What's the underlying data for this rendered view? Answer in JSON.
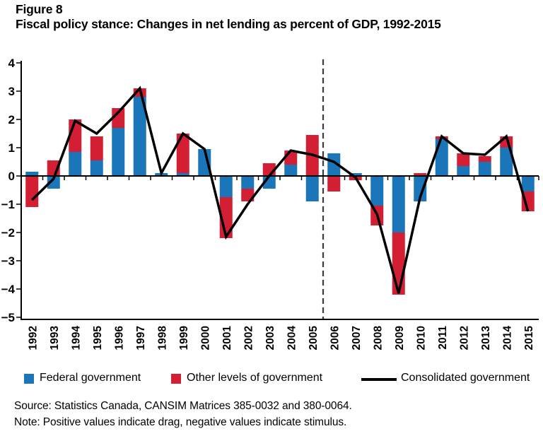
{
  "title": {
    "line1": "Figure 8",
    "line2": "Fiscal policy stance: Changes in net lending as percent of GDP, 1992-2015"
  },
  "colors": {
    "federal": "#1B75B9",
    "other": "#D21F34",
    "consolidated": "#000000",
    "divider": "#3B3B3B",
    "axis": "#000000"
  },
  "legend": {
    "federal_label": "Federal government",
    "other_label": "Other levels of government",
    "consolidated_label": "Consolidated government"
  },
  "footer": {
    "source": "Source: Statistics Canada, CANSIM Matrices 385-0032 and 380-0064.",
    "note": "Note: Positive values indicate drag, negative values indicate stimulus."
  },
  "chart_data": {
    "type": "bar",
    "subtype": "stacked-bars-with-line-overlay",
    "categories": [
      1992,
      1993,
      1994,
      1995,
      1996,
      1997,
      1998,
      1999,
      2000,
      2001,
      2002,
      2003,
      2004,
      2005,
      2006,
      2007,
      2008,
      2009,
      2010,
      2011,
      2012,
      2013,
      2014,
      2015
    ],
    "series": [
      {
        "name": "Federal government",
        "type": "bar",
        "color_key": "federal",
        "values": [
          0.15,
          -0.45,
          0.85,
          0.55,
          1.7,
          2.8,
          0.1,
          0.1,
          0.95,
          -0.75,
          -0.45,
          -0.45,
          0.4,
          -0.9,
          0.8,
          0.1,
          -1.05,
          -2.0,
          -0.9,
          1.3,
          0.35,
          0.5,
          1.0,
          -0.55
        ]
      },
      {
        "name": "Other levels of government",
        "type": "bar",
        "color_key": "other",
        "values": [
          -1.1,
          0.55,
          1.15,
          0.85,
          0.7,
          0.3,
          0,
          1.4,
          0,
          -1.45,
          -0.45,
          0.45,
          0.5,
          1.45,
          -0.55,
          -0.15,
          -0.7,
          -2.2,
          0.1,
          0.1,
          0.45,
          0.2,
          0.4,
          -0.7
        ]
      },
      {
        "name": "Consolidated government",
        "type": "line",
        "color_key": "consolidated",
        "values": [
          -0.85,
          -0.1,
          1.95,
          1.5,
          2.25,
          3.1,
          0.1,
          1.5,
          0.95,
          -2.15,
          -1.0,
          0.0,
          0.9,
          0.75,
          0.5,
          -0.05,
          -1.35,
          -4.15,
          -0.75,
          1.4,
          0.8,
          0.75,
          1.4,
          -1.25
        ]
      }
    ],
    "title": "Fiscal policy stance: Changes in net lending as percent of GDP, 1992-2015",
    "xlabel": "",
    "ylabel": "",
    "ylim": [
      -5,
      4
    ],
    "yticks": [
      4,
      3,
      2,
      1,
      0,
      -1,
      -2,
      -3,
      -4,
      -5
    ],
    "grid": false,
    "legend_position": "bottom",
    "dashed_divider_between": [
      2005,
      2006
    ],
    "x_tick_style": "boundary ticks on zero line, year labels rotated 90deg"
  }
}
